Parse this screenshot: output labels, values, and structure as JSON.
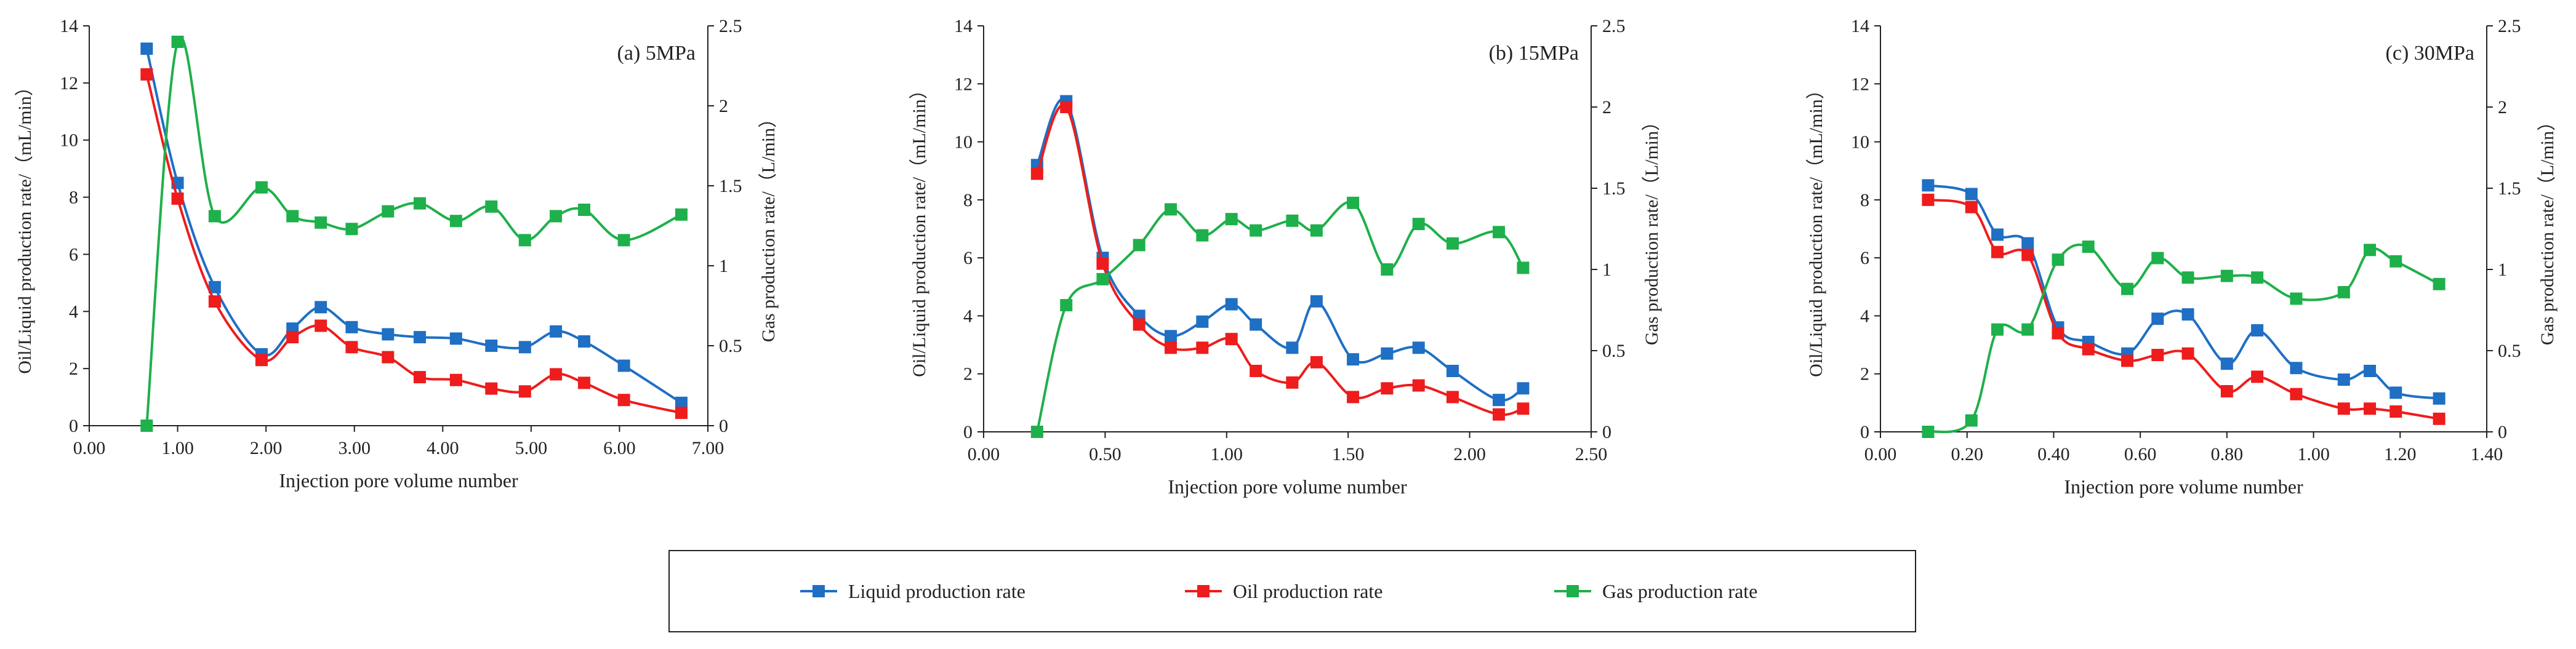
{
  "chart_data": [
    {
      "type": "line",
      "panel_label": "(a)  5MPa",
      "xlabel": "Injection pore volume number",
      "ylabel_left": "Oil/Liquid production rate/（mL/min）",
      "ylabel_right": "Gas production rate/（L/min）",
      "xlim": [
        0,
        7
      ],
      "xticks": [
        0,
        1,
        2,
        3,
        4,
        5,
        6,
        7
      ],
      "xtick_labels": [
        "0.00",
        "1.00",
        "2.00",
        "3.00",
        "4.00",
        "5.00",
        "6.00",
        "7.00"
      ],
      "ylim_left": [
        0,
        14
      ],
      "yticks_left": [
        0,
        2,
        4,
        6,
        8,
        10,
        12,
        14
      ],
      "yticks_left_labels": [
        "0",
        "2",
        "4",
        "6",
        "8",
        "10",
        "12",
        "14"
      ],
      "ylim_right": [
        0,
        2.5
      ],
      "yticks_right": [
        0,
        0.5,
        1,
        1.5,
        2,
        2.5
      ],
      "yticks_right_labels": [
        "0",
        "0.5",
        "1",
        "1.5",
        "2",
        "2.5"
      ],
      "series": [
        {
          "name": "Liquid production rate",
          "axis": "left",
          "color": "#1f6fc4",
          "x": [
            0.65,
            1.0,
            1.42,
            1.95,
            2.3,
            2.62,
            2.97,
            3.38,
            3.74,
            4.15,
            4.55,
            4.93,
            5.28,
            5.6,
            6.05,
            6.7
          ],
          "y": [
            13.2,
            8.5,
            4.85,
            2.5,
            3.4,
            4.15,
            3.45,
            3.2,
            3.1,
            3.05,
            2.8,
            2.75,
            3.3,
            2.95,
            2.1,
            0.8
          ]
        },
        {
          "name": "Oil production rate",
          "axis": "left",
          "color": "#ee1c1c",
          "x": [
            0.65,
            1.0,
            1.42,
            1.95,
            2.3,
            2.62,
            2.97,
            3.38,
            3.74,
            4.15,
            4.55,
            4.93,
            5.28,
            5.6,
            6.05,
            6.7
          ],
          "y": [
            12.3,
            7.95,
            4.35,
            2.3,
            3.1,
            3.5,
            2.75,
            2.4,
            1.7,
            1.6,
            1.3,
            1.2,
            1.8,
            1.5,
            0.9,
            0.45
          ]
        },
        {
          "name": "Gas production rate",
          "axis": "right",
          "color": "#1eb04a",
          "x": [
            0.65,
            1.0,
            1.42,
            1.95,
            2.3,
            2.62,
            2.97,
            3.38,
            3.74,
            4.15,
            4.55,
            4.93,
            5.28,
            5.6,
            6.05,
            6.7
          ],
          "y": [
            0.0,
            2.4,
            1.31,
            1.49,
            1.31,
            1.27,
            1.23,
            1.34,
            1.39,
            1.28,
            1.37,
            1.16,
            1.31,
            1.35,
            1.16,
            1.32
          ]
        }
      ]
    },
    {
      "type": "line",
      "panel_label": "(b)  15MPa",
      "xlabel": "Injection pore volume number",
      "ylabel_left": "Oil/Liquid production rate/（mL/min）",
      "ylabel_right": "Gas production rate/（L/min）",
      "xlim": [
        0,
        2.5
      ],
      "xticks": [
        0,
        0.5,
        1,
        1.5,
        2,
        2.5
      ],
      "xtick_labels": [
        "0.00",
        "0.50",
        "1.00",
        "1.50",
        "2.00",
        "2.50"
      ],
      "ylim_left": [
        0,
        14
      ],
      "yticks_left": [
        0,
        2,
        4,
        6,
        8,
        10,
        12,
        14
      ],
      "yticks_left_labels": [
        "0",
        "2",
        "4",
        "6",
        "8",
        "10",
        "12",
        "14"
      ],
      "ylim_right": [
        0,
        2.5
      ],
      "yticks_right": [
        0,
        0.5,
        1,
        1.5,
        2,
        2.5
      ],
      "yticks_right_labels": [
        "0",
        "0.5",
        "1",
        "1.5",
        "2",
        "2.5"
      ],
      "series": [
        {
          "name": "Liquid production rate",
          "axis": "left",
          "color": "#1f6fc4",
          "x": [
            0.22,
            0.34,
            0.49,
            0.64,
            0.77,
            0.9,
            1.02,
            1.12,
            1.27,
            1.37,
            1.52,
            1.66,
            1.79,
            1.93,
            2.12,
            2.22
          ],
          "y": [
            9.2,
            11.4,
            6.0,
            4.0,
            3.3,
            3.8,
            4.4,
            3.7,
            2.9,
            4.5,
            2.5,
            2.7,
            2.9,
            2.1,
            1.1,
            1.5
          ]
        },
        {
          "name": "Oil production rate",
          "axis": "left",
          "color": "#ee1c1c",
          "x": [
            0.22,
            0.34,
            0.49,
            0.64,
            0.77,
            0.9,
            1.02,
            1.12,
            1.27,
            1.37,
            1.52,
            1.66,
            1.79,
            1.93,
            2.12,
            2.22
          ],
          "y": [
            8.9,
            11.2,
            5.8,
            3.7,
            2.9,
            2.9,
            3.2,
            2.1,
            1.7,
            2.4,
            1.2,
            1.5,
            1.6,
            1.2,
            0.6,
            0.8
          ]
        },
        {
          "name": "Gas production rate",
          "axis": "right",
          "color": "#1eb04a",
          "x": [
            0.22,
            0.34,
            0.49,
            0.64,
            0.77,
            0.9,
            1.02,
            1.12,
            1.27,
            1.37,
            1.52,
            1.66,
            1.79,
            1.93,
            2.12,
            2.22
          ],
          "y": [
            0.0,
            0.78,
            0.94,
            1.15,
            1.37,
            1.21,
            1.31,
            1.24,
            1.3,
            1.24,
            1.41,
            1.0,
            1.28,
            1.16,
            1.23,
            1.01
          ]
        }
      ]
    },
    {
      "type": "line",
      "panel_label": "(c)  30MPa",
      "xlabel": "Injection pore volume number",
      "ylabel_left": "Oil/Liquid production rate/（mL/min）",
      "ylabel_right": "Gas production rate/（L/min）",
      "xlim": [
        0,
        1.4
      ],
      "xticks": [
        0,
        0.2,
        0.4,
        0.6,
        0.8,
        1.0,
        1.2,
        1.4
      ],
      "xtick_labels": [
        "0.00",
        "0.20",
        "0.40",
        "0.60",
        "0.80",
        "1.00",
        "1.20",
        "1.40"
      ],
      "ylim_left": [
        0,
        14
      ],
      "yticks_left": [
        0,
        2,
        4,
        6,
        8,
        10,
        12,
        14
      ],
      "yticks_left_labels": [
        "0",
        "2",
        "4",
        "6",
        "8",
        "10",
        "12",
        "14"
      ],
      "ylim_right": [
        0,
        2.5
      ],
      "yticks_right": [
        0,
        0.5,
        1,
        1.5,
        2,
        2.5
      ],
      "yticks_right_labels": [
        "0",
        "0.5",
        "1",
        "1.5",
        "2",
        "2.5"
      ],
      "series": [
        {
          "name": "Liquid production rate",
          "axis": "left",
          "color": "#1f6fc4",
          "x": [
            0.11,
            0.21,
            0.27,
            0.34,
            0.41,
            0.48,
            0.57,
            0.64,
            0.71,
            0.8,
            0.87,
            0.96,
            1.07,
            1.13,
            1.19,
            1.29
          ],
          "y": [
            8.5,
            8.2,
            6.8,
            6.5,
            3.6,
            3.1,
            2.7,
            3.9,
            4.05,
            2.35,
            3.5,
            2.2,
            1.8,
            2.1,
            1.35,
            1.15
          ]
        },
        {
          "name": "Oil production rate",
          "axis": "left",
          "color": "#ee1c1c",
          "x": [
            0.11,
            0.21,
            0.27,
            0.34,
            0.41,
            0.48,
            0.57,
            0.64,
            0.71,
            0.8,
            0.87,
            0.96,
            1.07,
            1.13,
            1.19,
            1.29
          ],
          "y": [
            8.0,
            7.75,
            6.2,
            6.1,
            3.4,
            2.85,
            2.45,
            2.65,
            2.7,
            1.4,
            1.9,
            1.3,
            0.8,
            0.8,
            0.7,
            0.45
          ]
        },
        {
          "name": "Gas production rate",
          "axis": "right",
          "color": "#1eb04a",
          "x": [
            0.11,
            0.21,
            0.27,
            0.34,
            0.41,
            0.48,
            0.57,
            0.64,
            0.71,
            0.8,
            0.87,
            0.96,
            1.07,
            1.13,
            1.19,
            1.29
          ],
          "y": [
            0.0,
            0.07,
            0.63,
            0.63,
            1.06,
            1.14,
            0.88,
            1.07,
            0.95,
            0.96,
            0.95,
            0.82,
            0.86,
            1.12,
            1.05,
            0.91
          ]
        }
      ]
    }
  ],
  "legend": {
    "items": [
      {
        "label": "Liquid production rate",
        "color": "#1f6fc4"
      },
      {
        "label": "Oil production rate",
        "color": "#ee1c1c"
      },
      {
        "label": "Gas production rate",
        "color": "#1eb04a"
      }
    ]
  }
}
